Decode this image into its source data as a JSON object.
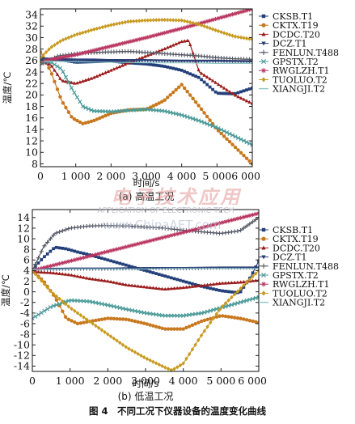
{
  "figure": {
    "caption": "图 4　不同工况下仪器设备的温度变化曲线",
    "watermark": {
      "main": "电子技术应用",
      "sub": "APPLICATION OF ELECTRONIC TECH",
      "url": "www.ChinaAET.com"
    }
  },
  "legend": [
    {
      "name": "CKSB.T1",
      "color": "#233f7a",
      "marker": "square"
    },
    {
      "name": "CKTX.T19",
      "color": "#c8781e",
      "marker": "circle"
    },
    {
      "name": "DCDC.T20",
      "color": "#9b1c1c",
      "marker": "triangle-up"
    },
    {
      "name": "DCZ.T1",
      "color": "#2a3d75",
      "marker": "triangle-down"
    },
    {
      "name": "FENLUN.T488",
      "color": "#555a66",
      "marker": "plus"
    },
    {
      "name": "GPSTX.T2",
      "color": "#4a9a98",
      "marker": "x"
    },
    {
      "name": "RWGLZH.T1",
      "color": "#b8345f",
      "marker": "star"
    },
    {
      "name": "TUOLUO.T2",
      "color": "#c89a20",
      "marker": "diamond"
    },
    {
      "name": "XIANGJI.T2",
      "color": "#8fc7c3",
      "marker": "none"
    }
  ],
  "chart_data": [
    {
      "type": "line",
      "caption": "(a) 高温工况",
      "xlabel": "时间/s",
      "ylabel": "温度/℃",
      "xlim": [
        0,
        6000
      ],
      "ylim": [
        7.5,
        35
      ],
      "xticks": [
        0,
        1000,
        2000,
        3000,
        4000,
        5000,
        6000
      ],
      "xtick_labels": [
        "0",
        "1 000",
        "2 000",
        "3 000",
        "4 000",
        "5 000",
        "6 000"
      ],
      "yticks": [
        8,
        10,
        12,
        14,
        16,
        18,
        20,
        22,
        24,
        26,
        28,
        30,
        32,
        34
      ],
      "grid": false,
      "legend_position": "right",
      "series": [
        {
          "name": "CKSB.T1",
          "x": [
            0,
            500,
            1000,
            1500,
            2000,
            2500,
            3000,
            3500,
            4000,
            4500,
            5000,
            5500,
            6000
          ],
          "y": [
            26,
            26.2,
            25.7,
            25.8,
            25.9,
            25.6,
            25.4,
            25,
            24.3,
            23,
            20.3,
            20.2,
            21.2
          ]
        },
        {
          "name": "CKTX.T19",
          "x": [
            0,
            300,
            600,
            900,
            1200,
            1500,
            2000,
            2500,
            3000,
            3500,
            4000,
            4500,
            5000,
            5500,
            6000
          ],
          "y": [
            27.5,
            24,
            19,
            16,
            15,
            15.5,
            16.8,
            17.4,
            17.5,
            19,
            21.8,
            18,
            14,
            11,
            8
          ]
        },
        {
          "name": "DCDC.T20",
          "x": [
            0,
            300,
            600,
            1000,
            1500,
            2000,
            2500,
            3000,
            3500,
            4000,
            4200,
            4500,
            5000,
            5500,
            6000
          ],
          "y": [
            26,
            25.2,
            22.5,
            22,
            23,
            24.3,
            25.6,
            26.8,
            28,
            29.3,
            29.5,
            24,
            22,
            20,
            18.5
          ]
        },
        {
          "name": "DCZ.T1",
          "x": [
            0,
            500,
            1000,
            1500,
            2000,
            3000,
            4000,
            5000,
            6000
          ],
          "y": [
            26.3,
            26.2,
            26.1,
            26.1,
            26,
            26,
            25.9,
            25.9,
            25.8
          ]
        },
        {
          "name": "FENLUN.T488",
          "x": [
            0,
            500,
            1000,
            1500,
            2000,
            2500,
            3000,
            3500,
            4000,
            4500,
            5000,
            5500,
            6000
          ],
          "y": [
            25.3,
            26.8,
            27.2,
            27.4,
            27.5,
            27.6,
            27.4,
            27.2,
            27,
            26.8,
            26.5,
            26.3,
            26.2
          ]
        },
        {
          "name": "GPSTX.T2",
          "x": [
            0,
            300,
            600,
            900,
            1200,
            1500,
            2000,
            2500,
            3000,
            3500,
            4000,
            4500,
            5000,
            5500,
            6000
          ],
          "y": [
            25.8,
            25.7,
            24.5,
            21,
            18,
            17.2,
            17.1,
            17.3,
            17.5,
            17.2,
            16.5,
            15.5,
            14.3,
            12.8,
            11.3
          ]
        },
        {
          "name": "RWGLZH.T1",
          "x": [
            0,
            1000,
            2000,
            3000,
            4000,
            5000,
            6000
          ],
          "y": [
            25.8,
            27,
            28.5,
            30,
            31.6,
            33.3,
            35
          ]
        },
        {
          "name": "TUOLUO.T2",
          "x": [
            0,
            300,
            600,
            1000,
            1500,
            2000,
            2500,
            3000,
            3500,
            4000,
            4500,
            5000,
            5500,
            6000
          ],
          "y": [
            26.5,
            28.3,
            29.5,
            30.5,
            31.4,
            32.2,
            32.8,
            33,
            33.1,
            33,
            32.3,
            31.2,
            30.2,
            29.7
          ]
        },
        {
          "name": "XIANGJI.T2",
          "x": [
            0,
            1000,
            2000,
            3000,
            4000,
            5000,
            6000
          ],
          "y": [
            25.9,
            25.8,
            25.7,
            25.6,
            25.6,
            25.5,
            25.5
          ]
        }
      ]
    },
    {
      "type": "line",
      "caption": "(b) 低温工况",
      "xlabel": "时间/s",
      "ylabel": "温度/℃",
      "xlim": [
        0,
        6000
      ],
      "ylim": [
        -15,
        15.5
      ],
      "xticks": [
        0,
        1000,
        2000,
        3000,
        4000,
        5000,
        6000
      ],
      "xtick_labels": [
        "0",
        "1 000",
        "2 000",
        "3 000",
        "4 000",
        "5 000",
        "6 000"
      ],
      "yticks": [
        -14,
        -12,
        -10,
        -8,
        -6,
        -4,
        -2,
        0,
        2,
        4,
        6,
        8,
        10,
        12,
        14
      ],
      "grid": false,
      "legend_position": "right",
      "series": [
        {
          "name": "CKSB.T1",
          "x": [
            0,
            300,
            600,
            900,
            1200,
            1500,
            2000,
            2500,
            3000,
            3500,
            4000,
            4500,
            5000,
            5500,
            5800,
            6000
          ],
          "y": [
            4.2,
            6.5,
            8.4,
            8.1,
            7.5,
            7,
            6,
            5,
            4,
            3,
            2,
            1,
            0.2,
            -0.2,
            3,
            5.8
          ]
        },
        {
          "name": "CKTX.T19",
          "x": [
            0,
            300,
            600,
            900,
            1200,
            1500,
            2000,
            2500,
            3000,
            3500,
            4000,
            4500,
            5000,
            5500,
            6000
          ],
          "y": [
            4,
            2,
            -1,
            -5,
            -6,
            -5.6,
            -5,
            -5.2,
            -6,
            -7,
            -7,
            -5.5,
            -4.5,
            -5,
            -5.8
          ]
        },
        {
          "name": "DCDC.T20",
          "x": [
            0,
            500,
            1000,
            1500,
            2000,
            2500,
            3000,
            3500,
            4000,
            4500,
            5000,
            5500,
            6000
          ],
          "y": [
            3.8,
            3.6,
            3.2,
            2.5,
            2,
            1.3,
            0.9,
            0.5,
            0.8,
            1.2,
            1.6,
            1.8,
            2.2
          ]
        },
        {
          "name": "DCZ.T1",
          "x": [
            0,
            1000,
            2000,
            3000,
            4000,
            5000,
            6000
          ],
          "y": [
            4.2,
            4.3,
            4.3,
            4.4,
            4.4,
            4.5,
            4.5
          ]
        },
        {
          "name": "FENLUN.T488",
          "x": [
            0,
            300,
            600,
            1000,
            1500,
            2000,
            2500,
            3000,
            3500,
            4000,
            4500,
            5000,
            5500,
            6000
          ],
          "y": [
            4,
            8.5,
            11,
            12,
            12.4,
            12.5,
            12.4,
            12.2,
            12,
            11.6,
            11.3,
            11,
            11.5,
            14
          ]
        },
        {
          "name": "GPSTX.T2",
          "x": [
            0,
            500,
            1000,
            1500,
            2000,
            2500,
            3000,
            3500,
            4000,
            4500,
            5000,
            5500,
            6000
          ],
          "y": [
            -5,
            -2.8,
            -1.6,
            -1.8,
            -2.5,
            -3.3,
            -4,
            -4.5,
            -4.5,
            -4,
            -3,
            -2,
            -1
          ]
        },
        {
          "name": "RWGLZH.T1",
          "x": [
            0,
            1000,
            2000,
            3000,
            4000,
            5000,
            6000
          ],
          "y": [
            4,
            5.8,
            7.6,
            9.4,
            11.2,
            13,
            14.8
          ]
        },
        {
          "name": "TUOLUO.T2",
          "x": [
            0,
            500,
            1000,
            1500,
            2000,
            2500,
            3000,
            3500,
            3700,
            4000,
            4500,
            5000,
            5500,
            6000
          ],
          "y": [
            4,
            0,
            -3,
            -5.5,
            -8,
            -10.5,
            -12.5,
            -14.2,
            -14.8,
            -13.5,
            -8,
            -3,
            0.5,
            4
          ]
        },
        {
          "name": "XIANGJI.T2",
          "x": [
            0,
            1000,
            2000,
            3000,
            4000,
            5000,
            6000
          ],
          "y": [
            4.2,
            4.3,
            4.3,
            4.3,
            4.4,
            4.4,
            4.4
          ]
        }
      ]
    }
  ]
}
